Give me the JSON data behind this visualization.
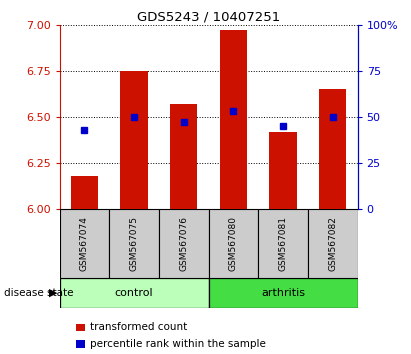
{
  "title": "GDS5243 / 10407251",
  "samples": [
    "GSM567074",
    "GSM567075",
    "GSM567076",
    "GSM567080",
    "GSM567081",
    "GSM567082"
  ],
  "bar_heights": [
    6.18,
    6.75,
    6.57,
    6.97,
    6.42,
    6.65
  ],
  "blue_dots": [
    6.43,
    6.5,
    6.47,
    6.53,
    6.45,
    6.5
  ],
  "ylim": [
    6.0,
    7.0
  ],
  "y2lim": [
    0,
    100
  ],
  "yticks": [
    6.0,
    6.25,
    6.5,
    6.75,
    7.0
  ],
  "y2ticks": [
    0,
    25,
    50,
    75,
    100
  ],
  "bar_color": "#cc1100",
  "dot_color": "#0000cc",
  "bar_width": 0.55,
  "group_info": [
    {
      "label": "control",
      "start": 0,
      "end": 3,
      "color": "#bbffbb"
    },
    {
      "label": "arthritis",
      "start": 3,
      "end": 6,
      "color": "#44dd44"
    }
  ],
  "disease_state_label": "disease state",
  "legend_bar_label": "transformed count",
  "legend_dot_label": "percentile rank within the sample",
  "label_box_color": "#cccccc"
}
